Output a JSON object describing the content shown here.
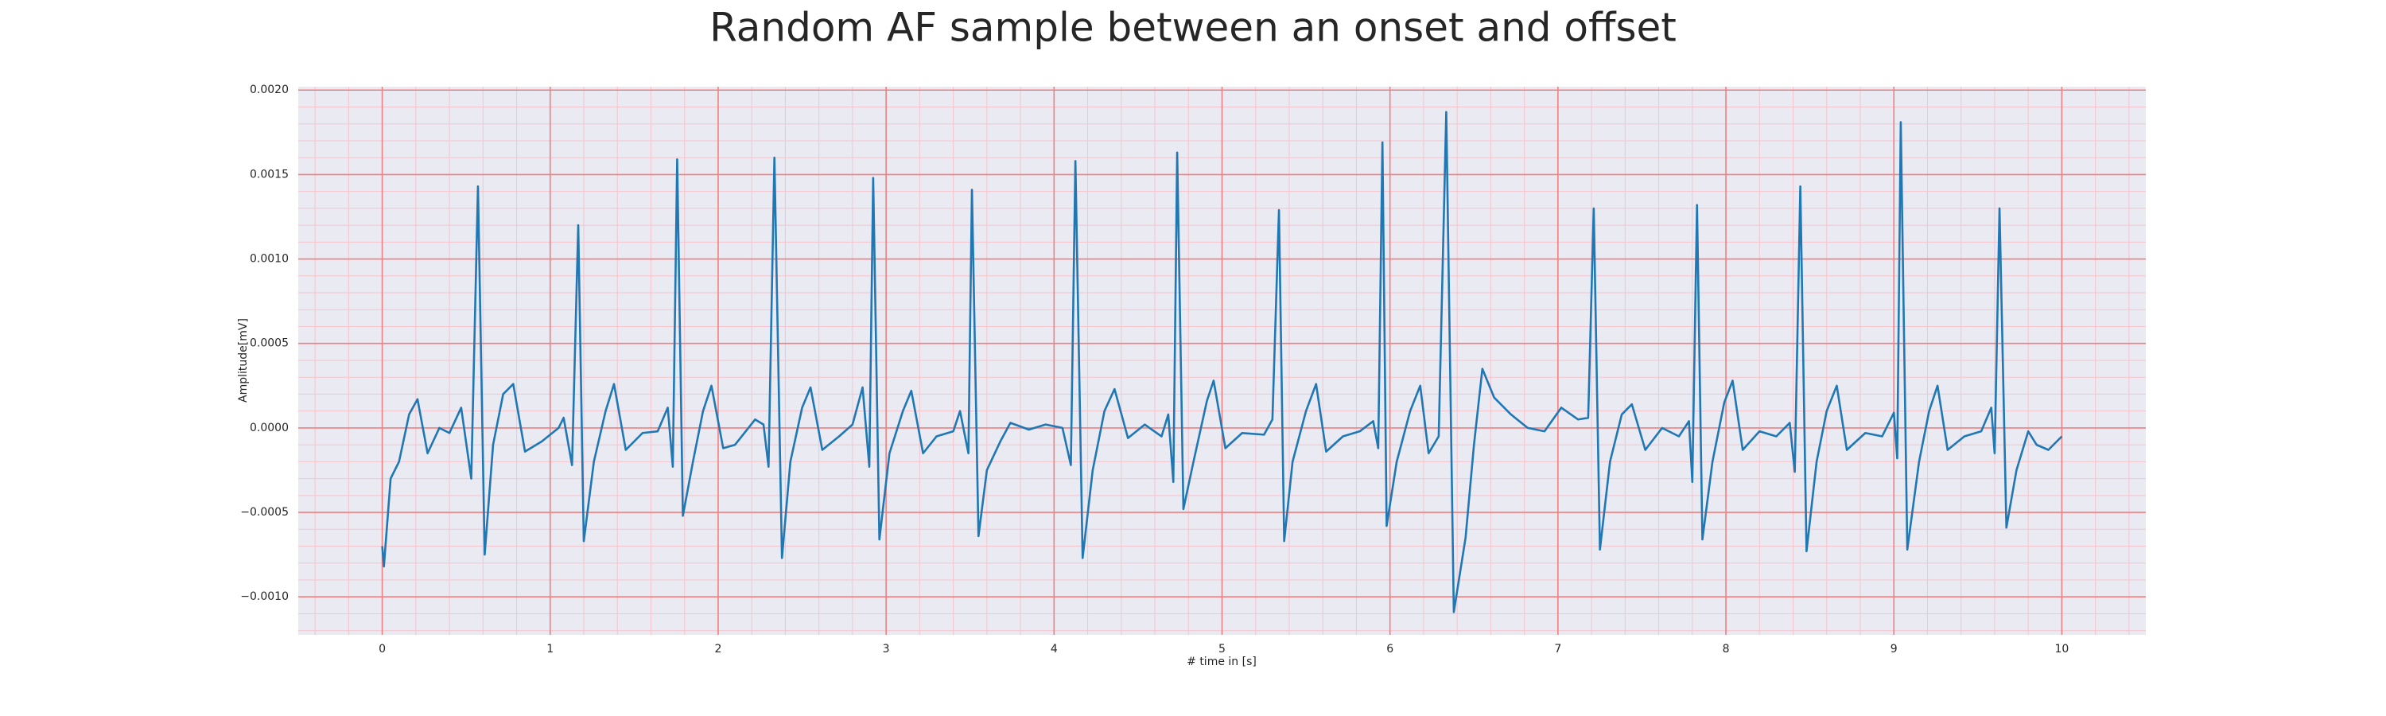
{
  "chart_data": {
    "type": "line",
    "title": "Random AF sample between an onset and offset",
    "xlabel": "# time in [s]",
    "ylabel": "Amplitude[mV]",
    "color": "#1f77b4",
    "grid": true,
    "minor_grid": true,
    "xlim": [
      -0.5,
      10.5
    ],
    "ylim": [
      -0.001225,
      0.00202
    ],
    "xticks": [
      0,
      1,
      2,
      3,
      4,
      5,
      6,
      7,
      8,
      9,
      10
    ],
    "yticks": [
      {
        "value": -0.001,
        "label": "−0.0010"
      },
      {
        "value": -0.0005,
        "label": "−0.0005"
      },
      {
        "value": 0,
        "label": "0.0000"
      },
      {
        "value": 0.0005,
        "label": "0.0005"
      },
      {
        "value": 0.001,
        "label": "0.0010"
      },
      {
        "value": 0.0015,
        "label": "0.0015"
      },
      {
        "value": 0.002,
        "label": "0.0020"
      }
    ],
    "x": [
      0,
      0.01,
      0.05,
      0.1,
      0.16,
      0.21,
      0.27,
      0.34,
      0.4,
      0.47,
      0.53,
      0.57,
      0.61,
      0.66,
      0.72,
      0.78,
      0.85,
      0.95,
      1.05,
      1.08,
      1.13,
      1.167,
      1.2,
      1.26,
      1.33,
      1.38,
      1.45,
      1.55,
      1.64,
      1.7,
      1.73,
      1.756,
      1.79,
      1.85,
      1.91,
      1.96,
      2.03,
      2.1,
      2.22,
      2.27,
      2.3,
      2.335,
      2.38,
      2.43,
      2.5,
      2.55,
      2.62,
      2.72,
      2.8,
      2.86,
      2.9,
      2.923,
      2.96,
      3.02,
      3.1,
      3.15,
      3.22,
      3.3,
      3.4,
      3.44,
      3.49,
      3.511,
      3.55,
      3.6,
      3.68,
      3.74,
      3.85,
      3.95,
      4.05,
      4.1,
      4.127,
      4.17,
      4.23,
      4.3,
      4.36,
      4.44,
      4.54,
      4.64,
      4.68,
      4.71,
      4.733,
      4.77,
      4.83,
      4.91,
      4.95,
      5.02,
      5.12,
      5.25,
      5.3,
      5.339,
      5.37,
      5.42,
      5.5,
      5.56,
      5.62,
      5.72,
      5.82,
      5.9,
      5.93,
      5.955,
      5.98,
      6.04,
      6.12,
      6.18,
      6.23,
      6.29,
      6.335,
      6.38,
      6.45,
      6.5,
      6.55,
      6.62,
      6.72,
      6.82,
      6.92,
      7.02,
      7.12,
      7.18,
      7.213,
      7.25,
      7.31,
      7.38,
      7.44,
      7.52,
      7.62,
      7.72,
      7.78,
      7.8,
      7.828,
      7.86,
      7.92,
      7.99,
      8.04,
      8.1,
      8.2,
      8.3,
      8.38,
      8.41,
      8.443,
      8.48,
      8.54,
      8.6,
      8.66,
      8.72,
      8.83,
      8.93,
      9.0,
      9.02,
      9.041,
      9.08,
      9.15,
      9.21,
      9.26,
      9.32,
      9.42,
      9.52,
      9.58,
      9.6,
      9.629,
      9.67,
      9.73,
      9.8,
      9.85,
      9.92,
      10.0
    ],
    "values": [
      -0.0007,
      -0.00082,
      -0.0003,
      -0.0002,
      8e-05,
      0.00017,
      -0.00015,
      0,
      -3e-05,
      0.00012,
      -0.0003,
      0.00143,
      -0.00075,
      -0.0001,
      0.0002,
      0.00026,
      -0.00014,
      -8e-05,
      0,
      6e-05,
      -0.00022,
      0.0012,
      -0.00067,
      -0.0002,
      0.0001,
      0.00026,
      -0.00013,
      -3e-05,
      -2e-05,
      0.00012,
      -0.00023,
      0.00159,
      -0.00052,
      -0.0002,
      0.0001,
      0.00025,
      -0.00012,
      -0.0001,
      5e-05,
      2e-05,
      -0.00023,
      0.0016,
      -0.00077,
      -0.0002,
      0.00012,
      0.00024,
      -0.00013,
      -5e-05,
      2e-05,
      0.00024,
      -0.00023,
      0.00148,
      -0.00066,
      -0.00015,
      0.0001,
      0.00022,
      -0.00015,
      -5e-05,
      -2e-05,
      0.0001,
      -0.00015,
      0.00141,
      -0.00064,
      -0.00025,
      -8e-05,
      3e-05,
      -1e-05,
      2e-05,
      0,
      -0.00022,
      0.00158,
      -0.00077,
      -0.00025,
      0.0001,
      0.00023,
      -6e-05,
      2e-05,
      -5e-05,
      8e-05,
      -0.00032,
      0.00163,
      -0.00048,
      -0.0002,
      0.00016,
      0.00028,
      -0.00012,
      -3e-05,
      -4e-05,
      5e-05,
      0.00129,
      -0.00067,
      -0.0002,
      0.0001,
      0.00026,
      -0.00014,
      -5e-05,
      -2e-05,
      4e-05,
      -0.00012,
      0.00169,
      -0.00058,
      -0.0002,
      0.0001,
      0.00025,
      -0.00015,
      -5e-05,
      0.00187,
      -0.00109,
      -0.00065,
      -0.0001,
      0.00035,
      0.00018,
      8e-05,
      0,
      -2e-05,
      0.00012,
      5e-05,
      6e-05,
      0.0013,
      -0.00072,
      -0.0002,
      8e-05,
      0.00014,
      -0.00013,
      0,
      -5e-05,
      4e-05,
      -0.00032,
      0.00132,
      -0.00066,
      -0.0002,
      0.00015,
      0.00028,
      -0.00013,
      -2e-05,
      -5e-05,
      3e-05,
      -0.00026,
      0.00143,
      -0.00073,
      -0.0002,
      0.0001,
      0.00025,
      -0.00013,
      -3e-05,
      -5e-05,
      9e-05,
      -0.00018,
      0.00181,
      -0.00072,
      -0.0002,
      0.0001,
      0.00025,
      -0.00013,
      -5e-05,
      -2e-05,
      0.00012,
      -0.00015,
      0.0013,
      -0.00059,
      -0.00025,
      -2e-05,
      -0.0001,
      -0.00013,
      -5e-05
    ]
  }
}
